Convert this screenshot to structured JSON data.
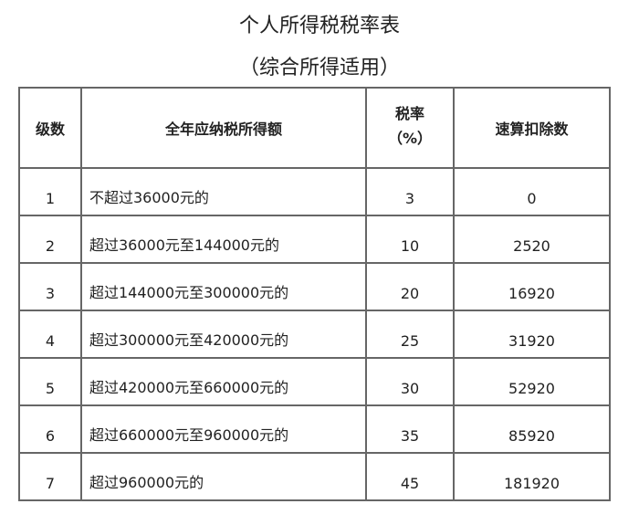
{
  "title": "个人所得税税率表",
  "subtitle": "（综合所得适用）",
  "table": {
    "headers": [
      "级数",
      "全年应纳税所得额",
      "税率",
      "（%）",
      "速算扣除数"
    ],
    "rows": [
      {
        "level": "1",
        "range": "不超过36000元的",
        "rate": "3",
        "deduction": "0"
      },
      {
        "level": "2",
        "range": "超过36000元至144000元的",
        "rate": "10",
        "deduction": "2520"
      },
      {
        "level": "3",
        "range": "超过144000元至300000元的",
        "rate": "20",
        "deduction": "16920"
      },
      {
        "level": "4",
        "range": "超过300000元至420000元的",
        "rate": "25",
        "deduction": "31920"
      },
      {
        "level": "5",
        "range": "超过420000元至660000元的",
        "rate": "30",
        "deduction": "52920"
      },
      {
        "level": "6",
        "range": "超过660000元至960000元的",
        "rate": "35",
        "deduction": "85920"
      },
      {
        "level": "7",
        "range": "超过960000元的",
        "rate": "45",
        "deduction": "181920"
      }
    ]
  }
}
